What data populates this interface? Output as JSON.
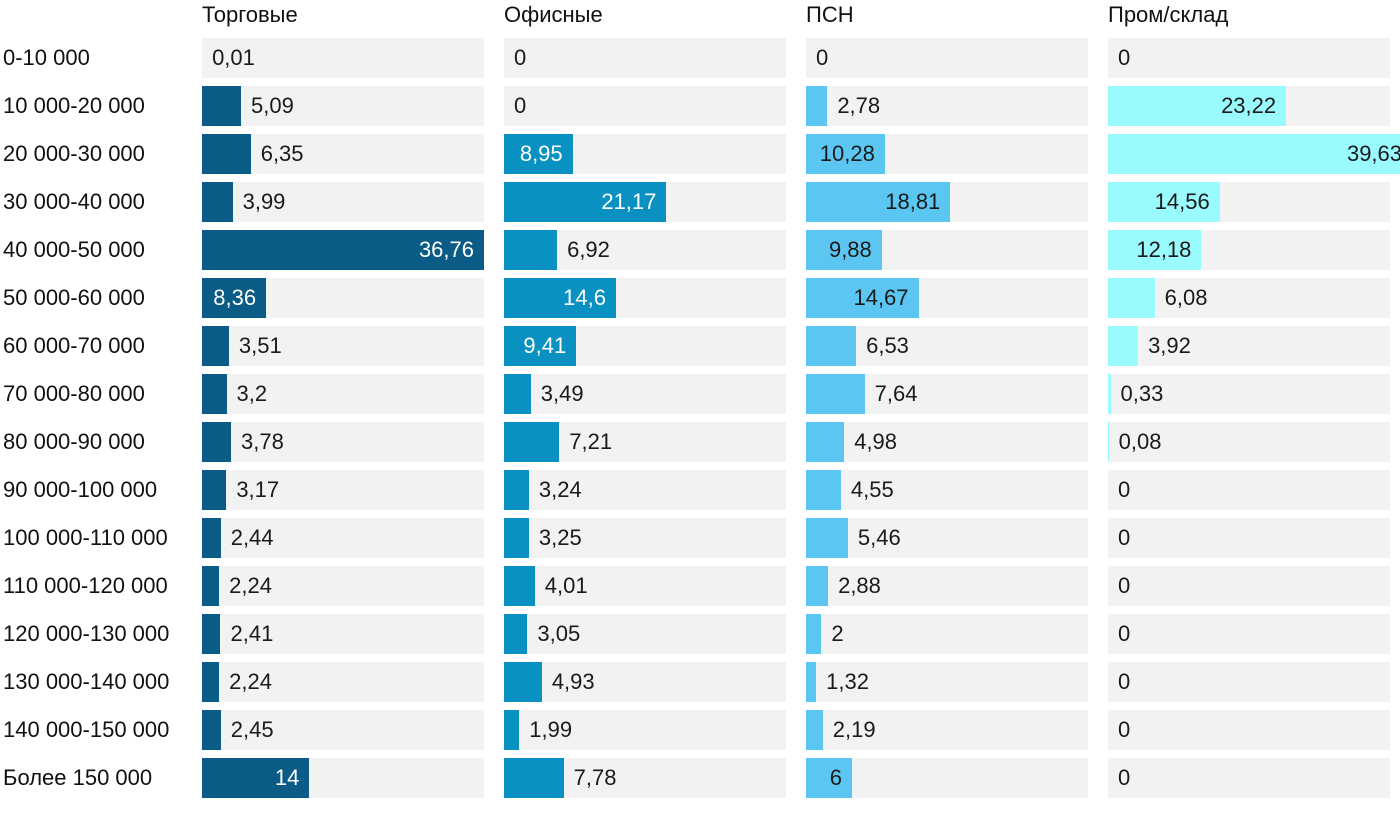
{
  "chart_data": {
    "type": "bar",
    "orientation": "horizontal",
    "layout": "small-multiples",
    "categories": [
      "0-10 000",
      "10 000-20 000",
      "20 000-30 000",
      "30 000-40 000",
      "40 000-50 000",
      "50 000-60 000",
      "60 000-70 000",
      "70 000-80 000",
      "80 000-90 000",
      "90 000-100 000",
      "100 000-110 000",
      "110 000-120 000",
      "120 000-130 000",
      "130 000-140 000",
      "140 000-150 000",
      "Более 150 000"
    ],
    "series": [
      {
        "name": "Торговые",
        "color": "#0a5b85",
        "value_text_on_bar": "#ffffff",
        "values": [
          0.01,
          5.09,
          6.35,
          3.99,
          36.76,
          8.36,
          3.51,
          3.2,
          3.78,
          3.17,
          2.44,
          2.24,
          2.41,
          2.24,
          2.45,
          14
        ],
        "labels": [
          "0,01",
          "5,09",
          "6,35",
          "3,99",
          "36,76",
          "8,36",
          "3,51",
          "3,2",
          "3,78",
          "3,17",
          "2,44",
          "2,24",
          "2,41",
          "2,24",
          "2,45",
          "14"
        ]
      },
      {
        "name": "Офисные",
        "color": "#0891c1",
        "value_text_on_bar": "#ffffff",
        "values": [
          0,
          0,
          8.95,
          21.17,
          6.92,
          14.6,
          9.41,
          3.49,
          7.21,
          3.24,
          3.25,
          4.01,
          3.05,
          4.93,
          1.99,
          7.78
        ],
        "labels": [
          "0",
          "0",
          "8,95",
          "21,17",
          "6,92",
          "14,6",
          "9,41",
          "3,49",
          "7,21",
          "3,24",
          "3,25",
          "4,01",
          "3,05",
          "4,93",
          "1,99",
          "7,78"
        ]
      },
      {
        "name": "ПСН",
        "color": "#5bc6f2",
        "value_text_on_bar": "#1a1a1a",
        "values": [
          0,
          2.78,
          10.28,
          18.81,
          9.88,
          14.67,
          6.53,
          7.64,
          4.98,
          4.55,
          5.46,
          2.88,
          2,
          1.32,
          2.19,
          6
        ],
        "labels": [
          "0",
          "2,78",
          "10,28",
          "18,81",
          "9,88",
          "14,67",
          "6,53",
          "7,64",
          "4,98",
          "4,55",
          "5,46",
          "2,88",
          "2",
          "1,32",
          "2,19",
          "6"
        ]
      },
      {
        "name": "Пром/склад",
        "color": "#99fbfd",
        "value_text_on_bar": "#1a1a1a",
        "values": [
          0,
          23.22,
          39.63,
          14.56,
          12.18,
          6.08,
          3.92,
          0.33,
          0.08,
          0,
          0,
          0,
          0,
          0,
          0,
          0
        ],
        "labels": [
          "0",
          "23,22",
          "39,63",
          "14,56",
          "12,18",
          "6,08",
          "3,92",
          "0,33",
          "0,08",
          "0",
          "0",
          "0",
          "0",
          "0",
          "0",
          "0"
        ]
      }
    ],
    "track_color": "#f2f2f2"
  }
}
